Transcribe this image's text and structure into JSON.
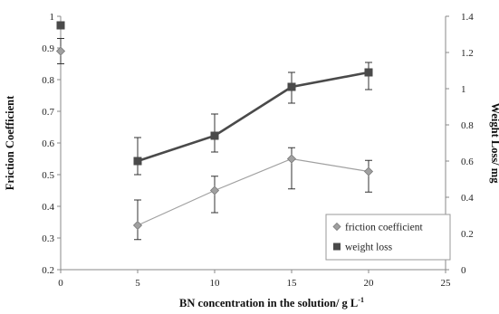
{
  "chart_data": {
    "type": "line",
    "xlabel": "BN concentration in the solution/ g L",
    "xlabel_sup": "-1",
    "ylabel_left": "Friction Coefficient",
    "ylabel_right": "Weight Loss/ mg",
    "xlim": [
      0,
      25
    ],
    "xticks": [
      0,
      5,
      10,
      15,
      20,
      25
    ],
    "ylim_left": [
      0.2,
      1.0
    ],
    "yticks_left": [
      "0.2",
      "0.3",
      "0.4",
      "0.5",
      "0.6",
      "0.7",
      "0.8",
      "0.9",
      "1"
    ],
    "ylim_right": [
      0,
      1.4
    ],
    "yticks_right": [
      "0",
      "0.2",
      "0.4",
      "0.6",
      "0.8",
      "1",
      "1.2",
      "1.4"
    ],
    "grid": false,
    "legend_position": "bottom-right",
    "series": [
      {
        "name": "friction coefficient",
        "axis": "left",
        "color": "#a0a0a0",
        "marker": "diamond",
        "line_width": "thin",
        "connected_x": [
          5,
          10,
          15,
          20
        ],
        "points": [
          {
            "x": 0,
            "y": 0.89,
            "err_low": 0.04,
            "err_high": 0.04
          },
          {
            "x": 5,
            "y": 0.34,
            "err_low": 0.045,
            "err_high": 0.08
          },
          {
            "x": 10,
            "y": 0.45,
            "err_low": 0.07,
            "err_high": 0.045
          },
          {
            "x": 15,
            "y": 0.55,
            "err_low": 0.095,
            "err_high": 0.035
          },
          {
            "x": 20,
            "y": 0.51,
            "err_low": 0.065,
            "err_high": 0.035
          }
        ]
      },
      {
        "name": "weight loss",
        "axis": "right",
        "color": "#4a4a4a",
        "marker": "square",
        "line_width": "thick",
        "connected_x": [
          5,
          10,
          15,
          20
        ],
        "points": [
          {
            "x": 0,
            "y": 1.35,
            "err_low": 0.0,
            "err_high": 0.0
          },
          {
            "x": 5,
            "y": 0.6,
            "err_low": 0.075,
            "err_high": 0.13
          },
          {
            "x": 10,
            "y": 0.74,
            "err_low": 0.09,
            "err_high": 0.12
          },
          {
            "x": 15,
            "y": 1.01,
            "err_low": 0.09,
            "err_high": 0.08
          },
          {
            "x": 20,
            "y": 1.09,
            "err_low": 0.095,
            "err_high": 0.055
          }
        ]
      }
    ]
  }
}
